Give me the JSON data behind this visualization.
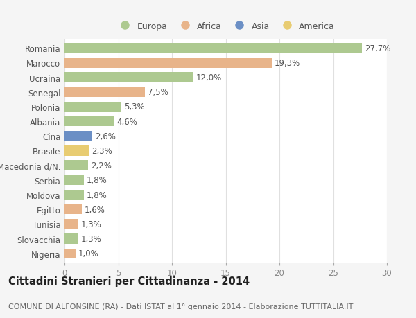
{
  "categories": [
    "Romania",
    "Marocco",
    "Ucraina",
    "Senegal",
    "Polonia",
    "Albania",
    "Cina",
    "Brasile",
    "Macedonia d/N.",
    "Serbia",
    "Moldova",
    "Egitto",
    "Tunisia",
    "Slovacchia",
    "Nigeria"
  ],
  "values": [
    27.7,
    19.3,
    12.0,
    7.5,
    5.3,
    4.6,
    2.6,
    2.3,
    2.2,
    1.8,
    1.8,
    1.6,
    1.3,
    1.3,
    1.0
  ],
  "labels": [
    "27,7%",
    "19,3%",
    "12,0%",
    "7,5%",
    "5,3%",
    "4,6%",
    "2,6%",
    "2,3%",
    "2,2%",
    "1,8%",
    "1,8%",
    "1,6%",
    "1,3%",
    "1,3%",
    "1,0%"
  ],
  "colors": [
    "#adc990",
    "#e8b48a",
    "#adc990",
    "#e8b48a",
    "#adc990",
    "#adc990",
    "#6b8fc5",
    "#e8cc72",
    "#adc990",
    "#adc990",
    "#adc990",
    "#e8b48a",
    "#e8b48a",
    "#adc990",
    "#e8b48a"
  ],
  "legend_labels": [
    "Europa",
    "Africa",
    "Asia",
    "America"
  ],
  "legend_colors": [
    "#adc990",
    "#e8b48a",
    "#6b8fc5",
    "#e8cc72"
  ],
  "title": "Cittadini Stranieri per Cittadinanza - 2014",
  "subtitle": "COMUNE DI ALFONSINE (RA) - Dati ISTAT al 1° gennaio 2014 - Elaborazione TUTTITALIA.IT",
  "xlim": [
    0,
    30
  ],
  "xticks": [
    0,
    5,
    10,
    15,
    20,
    25,
    30
  ],
  "fig_bg_color": "#f5f5f5",
  "plot_bg_color": "#ffffff",
  "grid_color": "#e0e0e0",
  "label_fontsize": 8.5,
  "ytick_fontsize": 8.5,
  "xtick_fontsize": 8.5,
  "title_fontsize": 10.5,
  "subtitle_fontsize": 8.0,
  "bar_height": 0.68
}
